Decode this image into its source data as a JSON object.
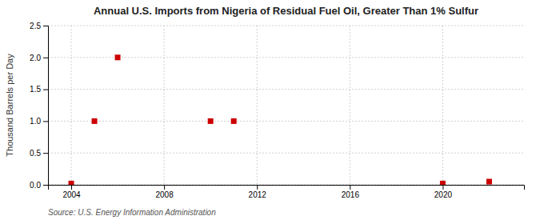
{
  "chart_data": {
    "type": "scatter",
    "title": "Annual U.S. Imports from Nigeria of Residual Fuel Oil, Greater Than 1% Sulfur",
    "ylabel": "Thousand Barrels per Day",
    "source": "Source: U.S. Energy Information Administration",
    "x": [
      2004,
      2005,
      2006,
      2010,
      2011,
      2020,
      2022
    ],
    "values": [
      0.02,
      1.0,
      2.0,
      1.0,
      1.0,
      0.02,
      0.05
    ],
    "color": "#cc0000",
    "marker": "square",
    "xlim": [
      2003.0,
      2023.5
    ],
    "ylim": [
      0.0,
      2.5
    ],
    "xticks": [
      2004,
      2008,
      2012,
      2016,
      2020
    ],
    "yticks": [
      {
        "value": 0.0,
        "label": "0.0"
      },
      0.5,
      {
        "value": 1.0,
        "label": "1.0"
      },
      1.5,
      {
        "value": 2.0,
        "label": "2.0"
      },
      2.5
    ],
    "grid": true
  }
}
